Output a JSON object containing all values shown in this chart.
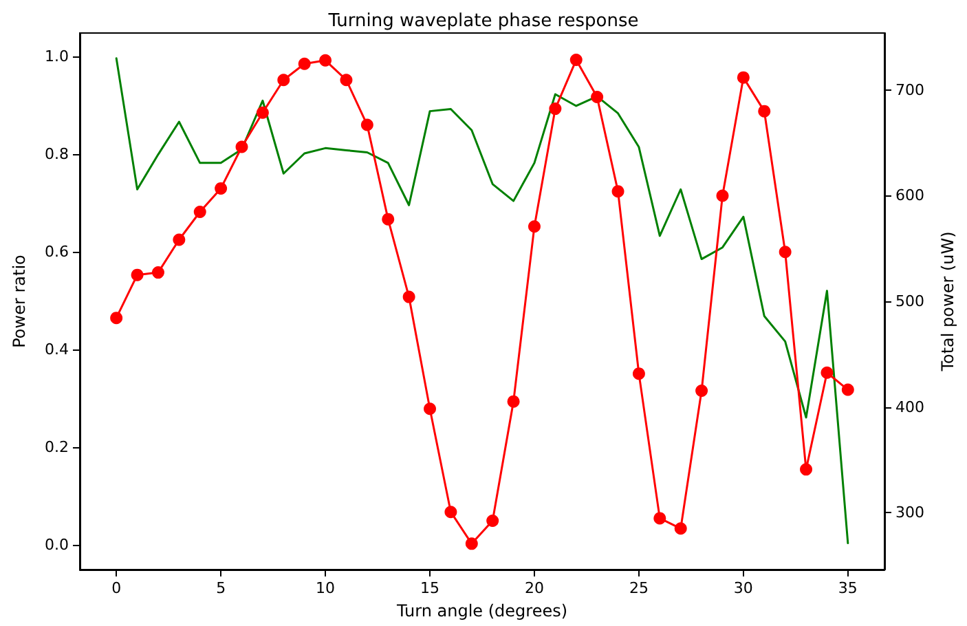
{
  "chart_data": {
    "type": "line",
    "title": "Turning waveplate phase response",
    "xlabel": "Turn angle (degrees)",
    "ylabel": "Power ratio",
    "y2label": "Total power (uW)",
    "x": [
      0,
      1,
      2,
      3,
      4,
      5,
      6,
      7,
      8,
      9,
      10,
      11,
      12,
      13,
      14,
      15,
      16,
      17,
      18,
      19,
      20,
      21,
      22,
      23,
      24,
      25,
      26,
      27,
      28,
      29,
      30,
      31,
      32,
      33,
      34,
      35
    ],
    "series": [
      {
        "color": "#ff0000",
        "marker": "circle",
        "values": [
          0.465,
          0.553,
          0.558,
          0.625,
          0.682,
          0.73,
          0.815,
          0.885,
          0.952,
          0.985,
          0.992,
          0.952,
          0.86,
          0.667,
          0.508,
          0.279,
          0.068,
          0.003,
          0.05,
          0.294,
          0.652,
          0.893,
          0.993,
          0.917,
          0.724,
          0.351,
          0.055,
          0.034,
          0.316,
          0.715,
          0.957,
          0.888,
          0.6,
          0.155,
          0.353,
          0.318
        ]
      },
      {
        "color": "#008000",
        "marker": "none",
        "axis": "y2",
        "values": [
          730,
          606,
          639,
          670,
          631,
          631,
          644,
          690,
          621,
          640,
          645,
          643,
          641,
          631,
          591,
          680,
          682,
          662,
          611,
          595,
          631,
          696,
          685,
          694,
          678,
          646,
          562,
          606,
          540,
          551,
          580,
          486,
          462,
          390,
          510,
          271
        ]
      }
    ],
    "xlim": [
      -1.75,
      36.75
    ],
    "xticks": [
      0,
      5,
      10,
      15,
      20,
      25,
      30,
      35
    ],
    "ylim": [
      -0.05,
      1.048
    ],
    "yticks": [
      {
        "value": 0,
        "label": "0.0"
      },
      {
        "value": 0.2,
        "label": "0.2"
      },
      {
        "value": 0.4,
        "label": "0.4"
      },
      {
        "value": 0.6,
        "label": "0.6"
      },
      {
        "value": 0.8,
        "label": "0.8"
      },
      {
        "value": 1,
        "label": "1.0"
      }
    ],
    "y2lim": [
      246,
      754
    ],
    "y2ticks": [
      300,
      400,
      500,
      600,
      700
    ],
    "grid": false
  }
}
